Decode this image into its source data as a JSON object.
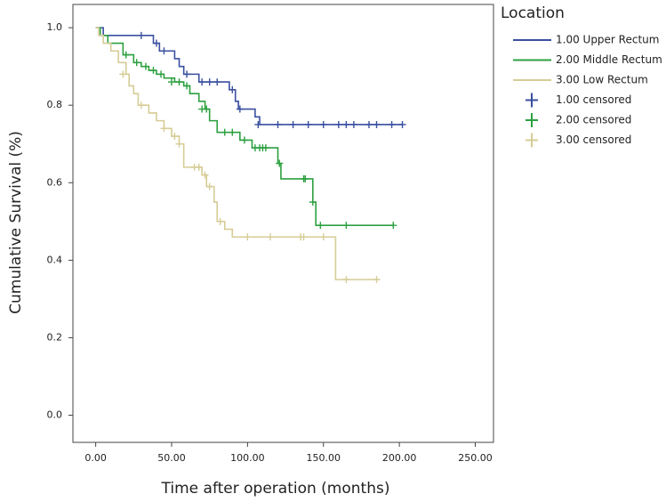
{
  "chart_data": {
    "type": "step",
    "x_label": "Time after operation (months)",
    "y_label": "Cumulative Survival (%)",
    "legend_title": "Location",
    "legend": "right",
    "xlim": [
      -15,
      262
    ],
    "ylim": [
      -0.07,
      1.06
    ],
    "xticks": [
      {
        "value": 0,
        "label": "0.00"
      },
      {
        "value": 50,
        "label": "50.00"
      },
      {
        "value": 100,
        "label": "100.00"
      },
      {
        "value": 150,
        "label": "150.00"
      },
      {
        "value": 200,
        "label": "200.00"
      },
      {
        "value": 250,
        "label": "250.00"
      }
    ],
    "yticks": [
      {
        "value": 0,
        "label": "0.0"
      },
      0.2,
      0.4,
      0.6,
      0.8,
      {
        "value": 1,
        "label": "1.0"
      }
    ],
    "series": [
      {
        "name": "1.00 Upper Rectum",
        "color": "#3a4fa0",
        "x": [
          0,
          5,
          38,
          42,
          52,
          55,
          58,
          68,
          88,
          92,
          94,
          105,
          108,
          202
        ],
        "values": [
          1.0,
          0.98,
          0.96,
          0.94,
          0.92,
          0.9,
          0.88,
          0.86,
          0.84,
          0.81,
          0.79,
          0.77,
          0.75,
          0.75
        ]
      },
      {
        "name": "2.00 Middle Rectum",
        "color": "#2ca040",
        "x": [
          0,
          3,
          8,
          18,
          25,
          30,
          35,
          40,
          45,
          52,
          58,
          62,
          68,
          72,
          75,
          80,
          95,
          103,
          120,
          122,
          143,
          145,
          196
        ],
        "values": [
          1.0,
          0.98,
          0.96,
          0.93,
          0.91,
          0.9,
          0.89,
          0.88,
          0.87,
          0.86,
          0.85,
          0.83,
          0.81,
          0.79,
          0.76,
          0.73,
          0.71,
          0.69,
          0.65,
          0.61,
          0.55,
          0.49,
          0.49
        ]
      },
      {
        "name": "3.00 Low Rectum",
        "color": "#d6cc96",
        "x": [
          0,
          2,
          5,
          10,
          15,
          20,
          22,
          25,
          28,
          35,
          40,
          45,
          50,
          55,
          58,
          70,
          73,
          78,
          80,
          85,
          90,
          158,
          186
        ],
        "values": [
          1.0,
          0.98,
          0.96,
          0.94,
          0.91,
          0.88,
          0.85,
          0.83,
          0.8,
          0.78,
          0.76,
          0.74,
          0.72,
          0.7,
          0.64,
          0.62,
          0.59,
          0.55,
          0.5,
          0.48,
          0.46,
          0.35,
          0.35
        ]
      },
      {
        "name": "1.00 censored",
        "color": "#3a4fa0",
        "marker": "+",
        "x": [
          30,
          40,
          45,
          60,
          70,
          75,
          80,
          90,
          95,
          107,
          120,
          130,
          140,
          150,
          160,
          165,
          170,
          180,
          185,
          195,
          202
        ],
        "values": [
          0.98,
          0.96,
          0.94,
          0.88,
          0.86,
          0.86,
          0.86,
          0.84,
          0.79,
          0.75,
          0.75,
          0.75,
          0.75,
          0.75,
          0.75,
          0.75,
          0.75,
          0.75,
          0.75,
          0.75,
          0.75
        ]
      },
      {
        "name": "2.00 censored",
        "color": "#2ca040",
        "marker": "+",
        "x": [
          20,
          27,
          33,
          38,
          43,
          50,
          55,
          60,
          70,
          73,
          85,
          90,
          98,
          105,
          108,
          110,
          112,
          121,
          137,
          138,
          143,
          148,
          165,
          196
        ],
        "values": [
          0.93,
          0.91,
          0.9,
          0.89,
          0.88,
          0.86,
          0.86,
          0.85,
          0.79,
          0.79,
          0.73,
          0.73,
          0.71,
          0.69,
          0.69,
          0.69,
          0.69,
          0.65,
          0.61,
          0.61,
          0.55,
          0.49,
          0.49,
          0.49
        ]
      },
      {
        "name": "3.00 censored",
        "color": "#d6cc96",
        "marker": "+",
        "x": [
          18,
          30,
          45,
          52,
          55,
          65,
          68,
          72,
          75,
          82,
          100,
          115,
          135,
          137,
          150,
          165,
          185
        ],
        "values": [
          0.88,
          0.8,
          0.74,
          0.72,
          0.7,
          0.64,
          0.64,
          0.62,
          0.59,
          0.5,
          0.46,
          0.46,
          0.46,
          0.46,
          0.46,
          0.35,
          0.35
        ]
      }
    ]
  }
}
